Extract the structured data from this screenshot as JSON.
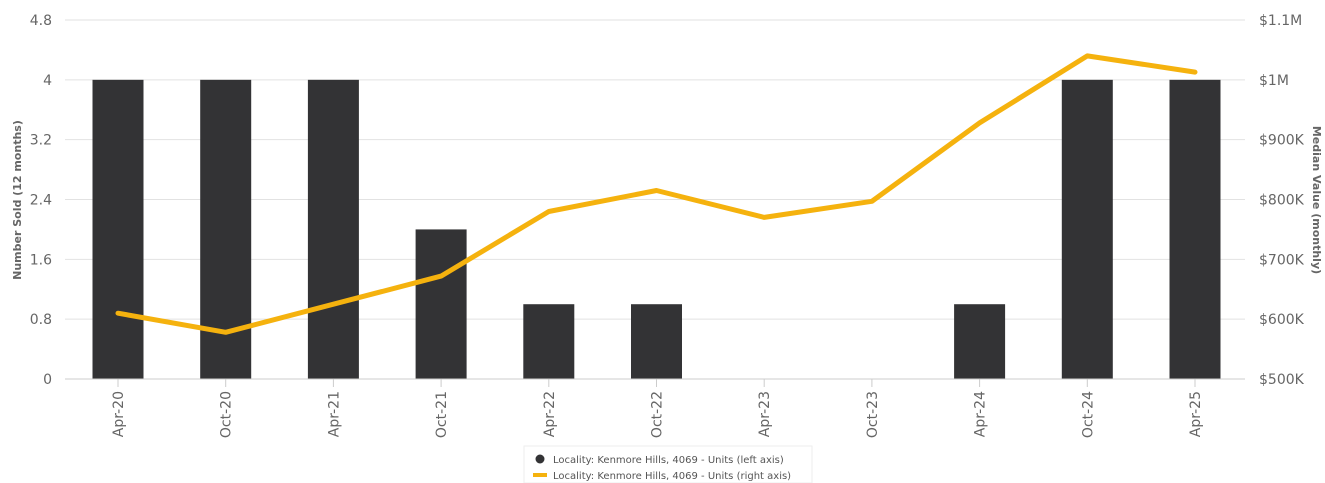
{
  "chart_data": {
    "type": "bar+line",
    "categories": [
      "Apr-20",
      "Oct-20",
      "Apr-21",
      "Oct-21",
      "Apr-22",
      "Oct-22",
      "Apr-23",
      "Oct-23",
      "Apr-24",
      "Oct-24",
      "Apr-25"
    ],
    "series": [
      {
        "name": "Locality: Kenmore Hills, 4069 - Units (left axis)",
        "type": "bar",
        "axis": "left",
        "color": "#333335",
        "values": [
          4,
          4,
          4,
          2,
          1,
          1,
          0,
          0,
          1,
          4,
          4
        ]
      },
      {
        "name": "Locality: Kenmore Hills, 4069 - Units (right axis)",
        "type": "line",
        "axis": "right",
        "color": "#F5B20E",
        "values": [
          610000,
          578000,
          625000,
          672000,
          780000,
          815000,
          770000,
          797000,
          928000,
          1040000,
          1013000
        ]
      }
    ],
    "left_axis": {
      "title": "Number Sold (12 months)",
      "range": [
        0,
        4.8
      ],
      "ticks": [
        0,
        0.8,
        1.6,
        2.4,
        3.2,
        4,
        4.8
      ],
      "tick_labels": [
        "0",
        "0.8",
        "1.6",
        "2.4",
        "3.2",
        "4",
        "4.8"
      ]
    },
    "right_axis": {
      "title": "Median Value (monthly)",
      "range": [
        500000,
        1100000
      ],
      "ticks": [
        500000,
        600000,
        700000,
        800000,
        900000,
        1000000,
        1100000
      ],
      "tick_labels": [
        "$500K",
        "$600K",
        "$700K",
        "$800K",
        "$900K",
        "$1M",
        "$1.1M"
      ]
    },
    "grid": true,
    "legend_position": "bottom-center"
  }
}
